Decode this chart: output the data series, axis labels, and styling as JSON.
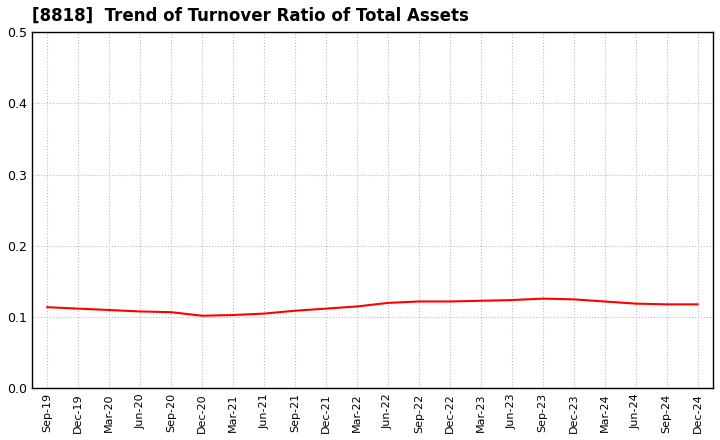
{
  "title": "[8818]  Trend of Turnover Ratio of Total Assets",
  "title_fontsize": 12,
  "line_color": "#ff0000",
  "line_width": 1.5,
  "background_color": "#ffffff",
  "grid_color": "#bbbbbb",
  "ylim": [
    0.0,
    0.5
  ],
  "yticks": [
    0.0,
    0.1,
    0.2,
    0.3,
    0.4,
    0.5
  ],
  "x_labels": [
    "Sep-19",
    "Dec-19",
    "Mar-20",
    "Jun-20",
    "Sep-20",
    "Dec-20",
    "Mar-21",
    "Jun-21",
    "Sep-21",
    "Dec-21",
    "Mar-22",
    "Jun-22",
    "Sep-22",
    "Dec-22",
    "Mar-23",
    "Jun-23",
    "Sep-23",
    "Dec-23",
    "Mar-24",
    "Jun-24",
    "Sep-24",
    "Dec-24"
  ],
  "values": [
    0.114,
    0.112,
    0.11,
    0.108,
    0.107,
    0.102,
    0.103,
    0.105,
    0.109,
    0.112,
    0.115,
    0.12,
    0.122,
    0.122,
    0.123,
    0.124,
    0.126,
    0.125,
    0.122,
    0.119,
    0.118,
    0.118
  ]
}
